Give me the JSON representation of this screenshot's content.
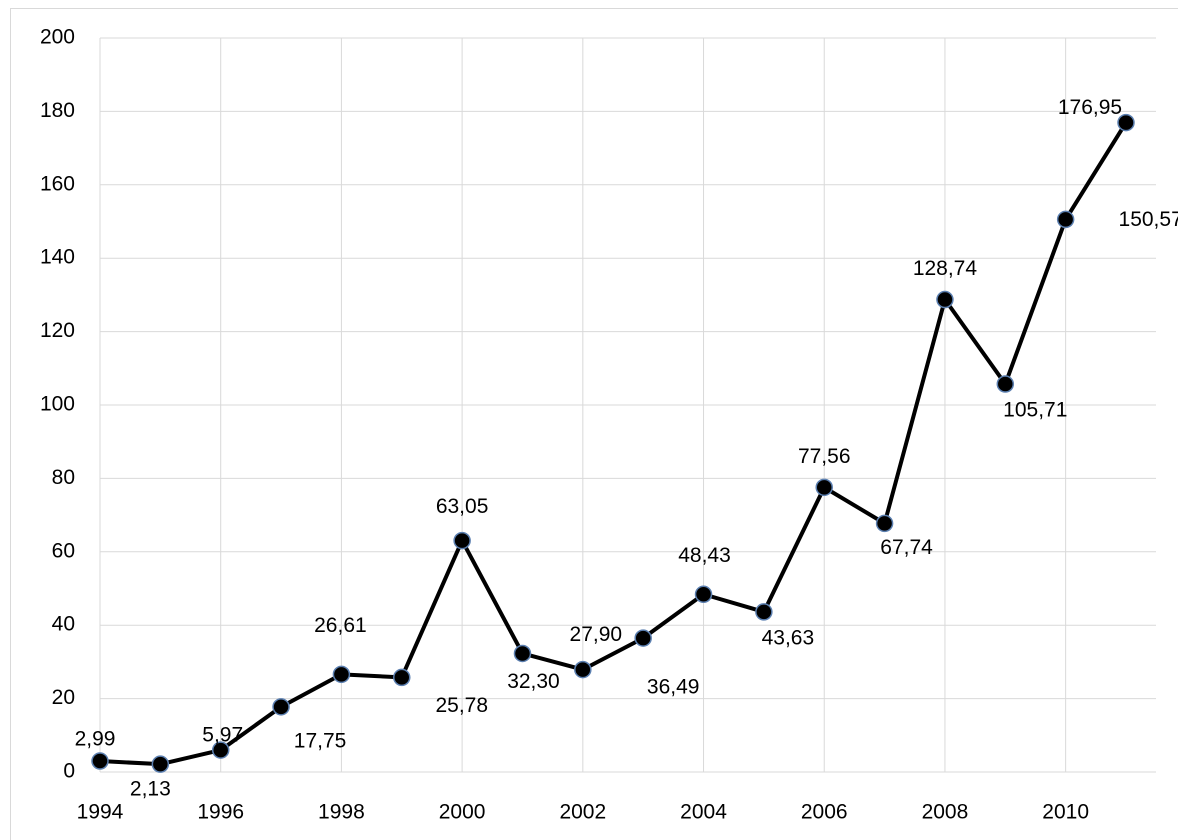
{
  "chart_data": {
    "type": "line",
    "x": [
      1994,
      1995,
      1996,
      1997,
      1998,
      1999,
      2000,
      2001,
      2002,
      2003,
      2004,
      2005,
      2006,
      2007,
      2008,
      2009,
      2010,
      2011
    ],
    "series": [
      {
        "color": "#000000",
        "values": [
          2.99,
          2.13,
          5.97,
          17.75,
          26.61,
          25.78,
          63.05,
          32.3,
          27.9,
          36.49,
          48.43,
          43.63,
          77.56,
          67.74,
          128.74,
          105.71,
          150.57,
          176.95
        ],
        "value_labels": [
          "2,99",
          "2,13",
          "5,97",
          "17,75",
          "26,61",
          "25,78",
          "63,05",
          "32,30",
          "27,90",
          "36,49",
          "48,43",
          "43,63",
          "77,56",
          "67,74",
          "128,74",
          "105,71",
          "150,57",
          "176,95"
        ]
      }
    ],
    "xlim": [
      1994,
      2011
    ],
    "xticks": [
      1994,
      1996,
      1998,
      2000,
      2002,
      2004,
      2006,
      2008,
      2010
    ],
    "ylim": [
      0,
      200
    ],
    "yticks": [
      0,
      20,
      40,
      60,
      80,
      100,
      120,
      140,
      160,
      180,
      200
    ],
    "grid": true
  }
}
